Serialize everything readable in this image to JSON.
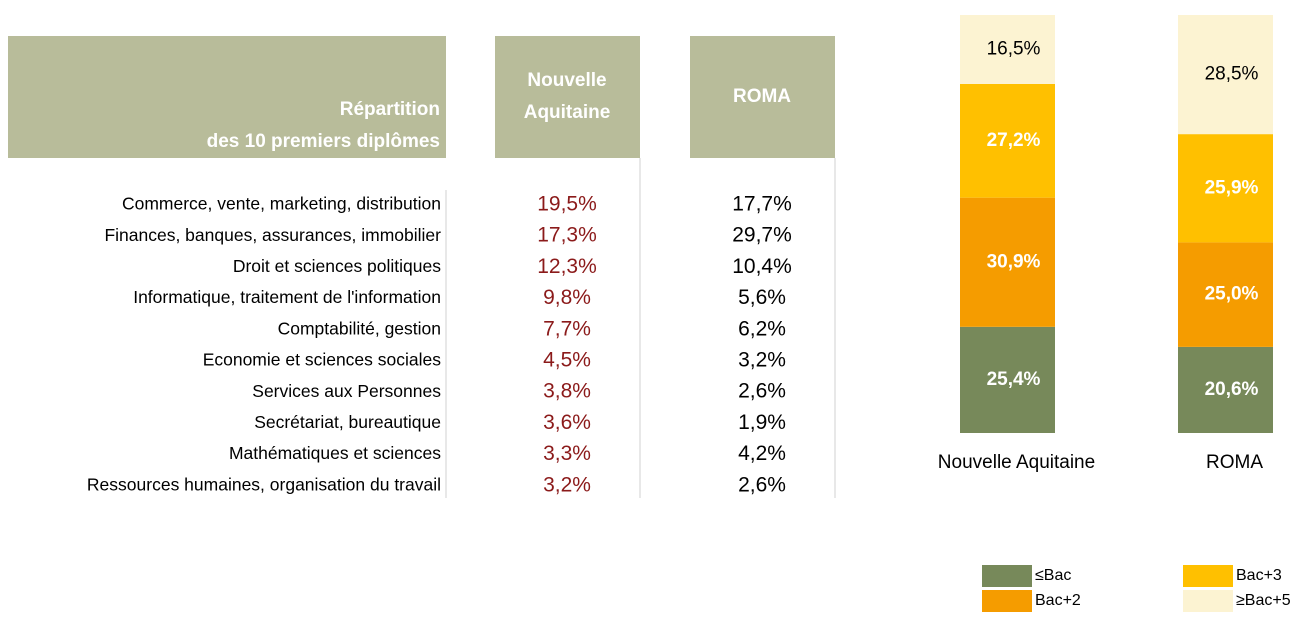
{
  "table": {
    "header": [
      [
        "Répartition",
        "des 10 premiers diplômes"
      ],
      [
        "Nouvelle",
        "Aquitaine"
      ],
      [
        "ROMA"
      ]
    ],
    "rows": [
      [
        "Commerce, vente, marketing, distribution",
        "19,5%",
        "17,7%"
      ],
      [
        "Finances, banques, assurances, immobilier",
        "17,3%",
        "29,7%"
      ],
      [
        "Droit et sciences politiques",
        "12,3%",
        "10,4%"
      ],
      [
        "Informatique, traitement de l'information",
        "9,8%",
        "5,6%"
      ],
      [
        "Comptabilité, gestion",
        "7,7%",
        "6,2%"
      ],
      [
        "Economie et sciences sociales",
        "4,5%",
        "3,2%"
      ],
      [
        "Services aux Personnes",
        "3,8%",
        "2,6%"
      ],
      [
        "Secrétariat, bureautique",
        "3,6%",
        "1,9%"
      ],
      [
        "Mathématiques et sciences",
        "3,3%",
        "4,2%"
      ],
      [
        "Ressources humaines, organisation du travail",
        "3,2%",
        "2,6%"
      ]
    ]
  },
  "chart_data": {
    "type": "stacked_bar",
    "categories": [
      "Nouvelle Aquitaine",
      "ROMA"
    ],
    "ylim": [
      0,
      100
    ],
    "series": [
      {
        "name": "≤Bac",
        "color": "#77895a",
        "values": [
          25.4,
          20.6
        ],
        "value_labels": [
          "25,4%",
          "20,6%"
        ]
      },
      {
        "name": "Bac+2",
        "color": "#f59c00",
        "values": [
          30.9,
          25.0
        ],
        "value_labels": [
          "30,9%",
          "25,0%"
        ]
      },
      {
        "name": "Bac+3",
        "color": "#ffc000",
        "values": [
          27.2,
          25.9
        ],
        "value_labels": [
          "27,2%",
          "25,9%"
        ]
      },
      {
        "name": "≥Bac+5",
        "color": "#fcf3d2",
        "values": [
          16.5,
          28.5
        ],
        "value_labels": [
          "16,5%",
          "28,5%"
        ]
      }
    ]
  }
}
